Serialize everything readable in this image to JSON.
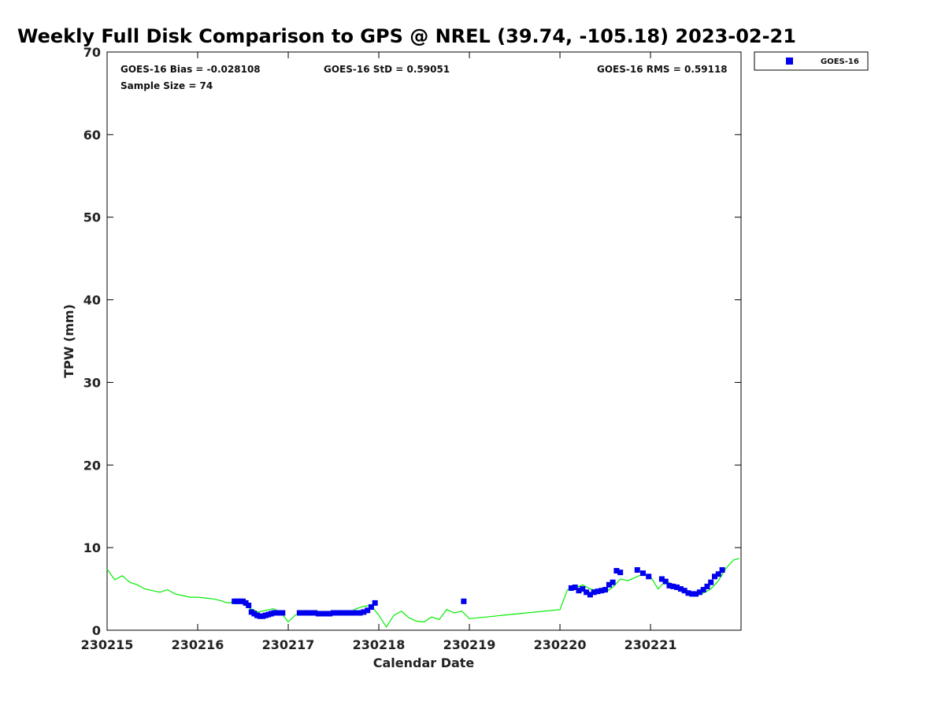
{
  "chart_data": {
    "type": "scatter",
    "title": "Weekly Full Disk Comparison to GPS @ NREL (39.74, -105.18) 2023-02-21",
    "xlabel": "Calendar Date",
    "ylabel": "TPW (mm)",
    "xlim": [
      "230215",
      "230221 23:59"
    ],
    "ylim": [
      0,
      70
    ],
    "x_ticks": [
      "230215",
      "230216",
      "230217",
      "230218",
      "230219",
      "230220",
      "230221"
    ],
    "y_ticks": [
      "0",
      "10",
      "20",
      "30",
      "40",
      "50",
      "60",
      "70"
    ],
    "grid": false,
    "legend_position": "top-right",
    "stats": {
      "bias": "GOES-16 Bias = -0.028108",
      "std": "GOES-16 StD = 0.59051",
      "rms": "GOES-16 RMS = 0.59118",
      "sample": "Sample Size = 74"
    },
    "series": [
      {
        "name": "GOES-16",
        "kind": "scatter",
        "color": "#0000ee",
        "marker": "square",
        "x": [
          "230216 09:45",
          "230216 10:30",
          "230216 11:15",
          "230216 12:00",
          "230216 12:45",
          "230216 13:30",
          "230216 14:15",
          "230216 15:00",
          "230216 15:45",
          "230216 16:30",
          "230216 17:15",
          "230216 18:00",
          "230216 18:45",
          "230216 19:30",
          "230216 20:15",
          "230216 21:00",
          "230216 21:45",
          "230216 22:30",
          "230217 03:00",
          "230217 04:00",
          "230217 05:00",
          "230217 06:00",
          "230217 07:00",
          "230217 08:00",
          "230217 09:00",
          "230217 10:00",
          "230217 11:00",
          "230217 12:00",
          "230217 13:00",
          "230217 14:00",
          "230217 15:00",
          "230217 16:00",
          "230217 17:00",
          "230217 18:00",
          "230217 19:00",
          "230217 20:00",
          "230217 21:00",
          "230217 22:00",
          "230217 23:00",
          "230218 22:30",
          "230220 03:00",
          "230220 04:00",
          "230220 05:00",
          "230220 06:00",
          "230220 07:00",
          "230220 08:00",
          "230220 09:00",
          "230220 10:00",
          "230220 11:00",
          "230220 12:00",
          "230220 13:00",
          "230220 14:00",
          "230220 15:00",
          "230220 16:00",
          "230220 20:30",
          "230220 22:00",
          "230220 23:30",
          "230221 03:00",
          "230221 04:00",
          "230221 05:00",
          "230221 06:00",
          "230221 07:00",
          "230221 08:00",
          "230221 09:00",
          "230221 10:00",
          "230221 11:00",
          "230221 12:00",
          "230221 13:00",
          "230221 14:00",
          "230221 15:00",
          "230221 16:00",
          "230221 17:00",
          "230221 18:00",
          "230221 19:00"
        ],
        "y": [
          3.5,
          3.5,
          3.5,
          3.5,
          3.3,
          3.0,
          2.2,
          2.0,
          1.8,
          1.7,
          1.7,
          1.8,
          1.9,
          2.0,
          2.1,
          2.1,
          2.1,
          2.1,
          2.1,
          2.1,
          2.1,
          2.1,
          2.1,
          2.0,
          2.0,
          2.0,
          2.0,
          2.1,
          2.1,
          2.1,
          2.1,
          2.1,
          2.1,
          2.1,
          2.1,
          2.2,
          2.4,
          2.8,
          3.3,
          3.5,
          5.1,
          5.2,
          4.8,
          5.0,
          4.6,
          4.3,
          4.6,
          4.7,
          4.8,
          4.9,
          5.5,
          5.8,
          7.2,
          7.0,
          7.3,
          6.9,
          6.5,
          6.2,
          5.9,
          5.4,
          5.3,
          5.2,
          5.0,
          4.8,
          4.5,
          4.4,
          4.4,
          4.6,
          4.9,
          5.3,
          5.8,
          6.5,
          6.8,
          7.3
        ]
      },
      {
        "kind": "line",
        "color": "#00ee00",
        "x": [
          "230215 00:00",
          "230215 02:00",
          "230215 04:00",
          "230215 06:00",
          "230215 08:00",
          "230215 10:00",
          "230215 12:00",
          "230215 14:00",
          "230215 16:00",
          "230215 18:00",
          "230215 20:00",
          "230215 22:00",
          "230216 00:00",
          "230216 02:00",
          "230216 04:00",
          "230216 06:00",
          "230216 08:00",
          "230216 10:00",
          "230216 12:00",
          "230216 14:00",
          "230216 16:00",
          "230216 18:00",
          "230216 20:00",
          "230216 22:00",
          "230217 00:00",
          "230217 02:00",
          "230217 04:00",
          "230217 06:00",
          "230217 08:00",
          "230217 10:00",
          "230217 12:00",
          "230217 14:00",
          "230217 16:00",
          "230217 18:00",
          "230217 20:00",
          "230217 22:00",
          "230218 00:00",
          "230218 02:00",
          "230218 04:00",
          "230218 06:00",
          "230218 08:00",
          "230218 10:00",
          "230218 12:00",
          "230218 14:00",
          "230218 16:00",
          "230218 18:00",
          "230218 20:00",
          "230218 22:00",
          "230219 00:00",
          "230220 00:00",
          "230220 02:00",
          "230220 04:00",
          "230220 06:00",
          "230220 08:00",
          "230220 10:00",
          "230220 12:00",
          "230220 14:00",
          "230220 16:00",
          "230220 18:00",
          "230220 20:00",
          "230220 22:00",
          "230221 00:00",
          "230221 02:00",
          "230221 04:00",
          "230221 06:00",
          "230221 08:00",
          "230221 10:00",
          "230221 12:00",
          "230221 14:00",
          "230221 16:00",
          "230221 18:00",
          "230221 20:00",
          "230221 22:00",
          "230221 23:30"
        ],
        "y": [
          7.4,
          6.1,
          6.6,
          5.8,
          5.5,
          5.0,
          4.8,
          4.6,
          4.9,
          4.4,
          4.2,
          4.0,
          4.0,
          3.9,
          3.8,
          3.6,
          3.3,
          3.4,
          3.2,
          2.6,
          2.2,
          2.4,
          2.6,
          2.2,
          1.0,
          1.9,
          2.2,
          1.8,
          2.0,
          2.2,
          2.0,
          2.4,
          2.1,
          2.6,
          2.9,
          3.0,
          1.8,
          0.4,
          1.8,
          2.3,
          1.5,
          1.1,
          1.0,
          1.6,
          1.3,
          2.5,
          2.1,
          2.3,
          1.4,
          2.5,
          4.9,
          5.1,
          5.5,
          5.0,
          4.8,
          4.6,
          5.2,
          6.2,
          6.0,
          6.4,
          6.8,
          6.5,
          5.0,
          6.0,
          5.5,
          5.0,
          4.6,
          4.3,
          4.5,
          5.0,
          6.0,
          7.5,
          8.5,
          8.7
        ]
      }
    ]
  }
}
